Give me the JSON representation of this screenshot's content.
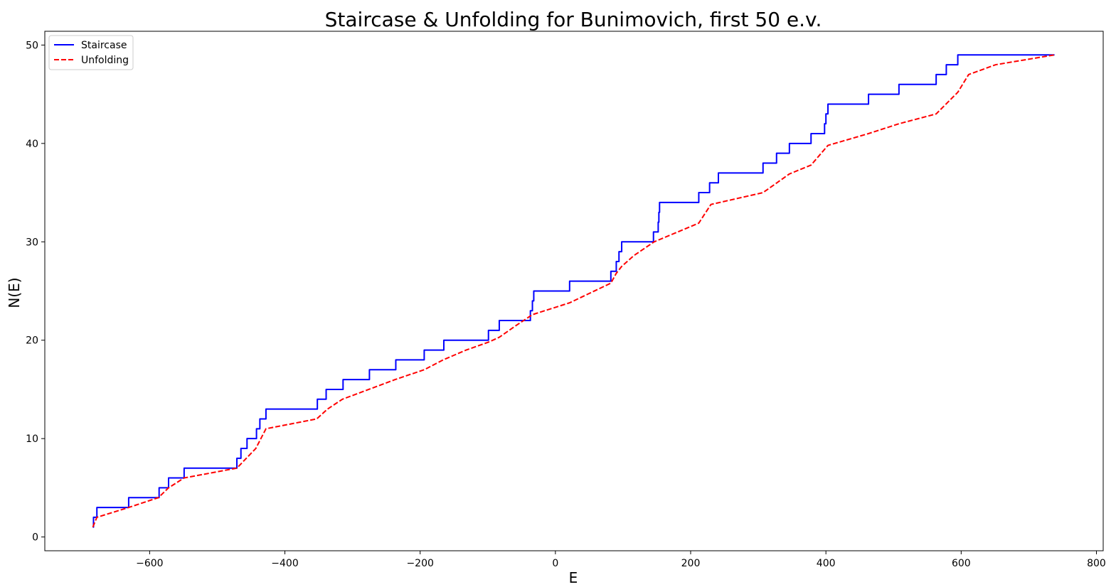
{
  "chart_data": {
    "type": "line",
    "title": "Staircase & Unfolding for Bunimovich, first 50 e.v.",
    "xlabel": "E",
    "ylabel": "N(E)",
    "xlim": [
      -755,
      810
    ],
    "ylim": [
      -1.4,
      51.4
    ],
    "xticks": [
      -600,
      -400,
      -200,
      0,
      200,
      400,
      600,
      800
    ],
    "yticks": [
      0,
      10,
      20,
      30,
      40,
      50
    ],
    "xtick_labels": [
      "−600",
      "−400",
      "−200",
      "0",
      "200",
      "400",
      "600",
      "800"
    ],
    "ytick_labels": [
      "0",
      "10",
      "20",
      "30",
      "40",
      "50"
    ],
    "grid": false,
    "legend_position": "top-left",
    "series": [
      {
        "name": "Staircase",
        "style": "step",
        "color": "#0000ff",
        "x": [
          -684,
          -683,
          -678,
          -631,
          -586,
          -572,
          -549,
          -471,
          -465,
          -456,
          -442,
          -437,
          -428,
          -352,
          -339,
          -314,
          -275,
          -236,
          -194,
          -165,
          -99,
          -83,
          -37,
          -34,
          -32,
          21,
          82,
          90,
          94,
          98,
          145,
          152,
          153,
          154,
          212,
          228,
          241,
          307,
          327,
          346,
          378,
          398,
          400,
          403,
          463,
          508,
          563,
          578,
          595,
          603,
          611,
          651,
          738
        ],
        "y": [
          1,
          2,
          3,
          4,
          5,
          6,
          7,
          8,
          9,
          10,
          11,
          12,
          13,
          14,
          15,
          16,
          17,
          18,
          19,
          20,
          21,
          22,
          23,
          24,
          25,
          26,
          27,
          28,
          29,
          30,
          31,
          32,
          33,
          34,
          35,
          36,
          37,
          38,
          39,
          40,
          41,
          42,
          43,
          44,
          45,
          46,
          47,
          48,
          49,
          49,
          49,
          49,
          49
        ]
      },
      {
        "name": "Unfolding",
        "style": "dashed",
        "color": "#ff0000",
        "x": [
          -684,
          -678,
          -631,
          -587,
          -572,
          -549,
          -471,
          -457,
          -443,
          -428,
          -353,
          -337,
          -315,
          -276,
          -237,
          -194,
          -166,
          -132,
          -99,
          -83,
          -58,
          -34,
          21,
          82,
          90,
          98,
          116,
          146,
          212,
          230,
          307,
          346,
          378,
          403,
          463,
          508,
          563,
          595,
          611,
          651,
          738
        ],
        "y": [
          1,
          2,
          3,
          4,
          5,
          6,
          7,
          8,
          9,
          11,
          12,
          13,
          14,
          15,
          16,
          17,
          18,
          19,
          19.8,
          20.3,
          21.5,
          22.6,
          23.8,
          25.8,
          26.8,
          27.5,
          28.6,
          30,
          31.9,
          33.8,
          35,
          36.9,
          37.8,
          39.8,
          41,
          42,
          43,
          45.2,
          47,
          48,
          49
        ]
      }
    ]
  }
}
